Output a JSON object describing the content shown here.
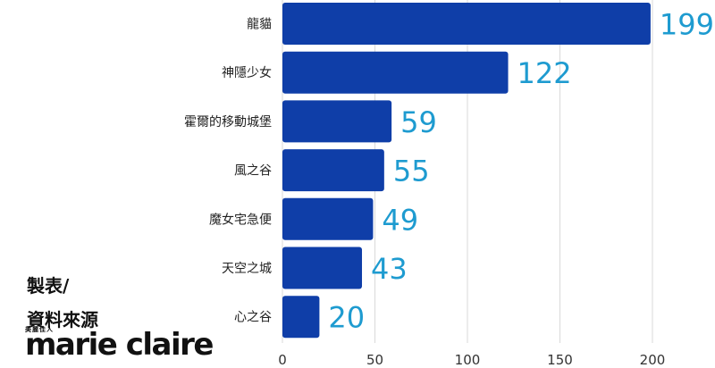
{
  "chart_data": {
    "type": "bar",
    "orientation": "horizontal",
    "categories": [
      "龍貓",
      "神隱少女",
      "霍爾的移動城堡",
      "風之谷",
      "魔女宅急便",
      "天空之城",
      "心之谷"
    ],
    "values": [
      199,
      122,
      59,
      55,
      49,
      43,
      20
    ],
    "xlim": [
      0,
      200
    ],
    "xticks": [
      "0",
      "50",
      "100",
      "150",
      "200"
    ],
    "grid": true,
    "bar_color": "#0f3ea8",
    "label_color": "#1e9bd0"
  },
  "credit": {
    "line1": "製表/",
    "line2": "資料來源"
  },
  "logo": {
    "subtitle": "美麗佳人",
    "name": "marie claire"
  }
}
